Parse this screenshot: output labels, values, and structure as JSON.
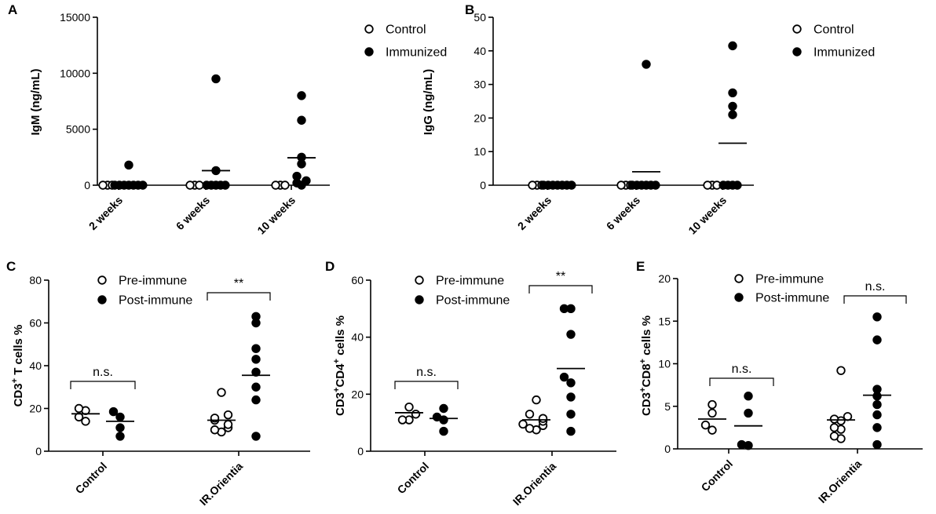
{
  "chart_data": [
    {
      "id": "A",
      "panel_label": "A",
      "type": "scatter",
      "ylabel": "IgM (ng/mL)",
      "ylim": [
        0,
        15000
      ],
      "yticks": [
        0,
        5000,
        10000,
        15000
      ],
      "tick_labels": [
        "0",
        "5000",
        "10000",
        "15000"
      ],
      "categories": [
        "2 weeks",
        "6 weeks",
        "10 weeks"
      ],
      "legend": [
        {
          "name": "Control",
          "filled": false
        },
        {
          "name": "Immunized",
          "filled": true
        }
      ],
      "series": [
        {
          "name": "Control",
          "filled": false,
          "groups": [
            [
              0,
              0,
              0
            ],
            [
              0,
              0,
              0
            ],
            [
              0,
              0,
              0
            ]
          ],
          "means": [
            null,
            null,
            null
          ]
        },
        {
          "name": "Immunized",
          "filled": true,
          "groups": [
            [
              1800,
              0,
              0,
              0,
              0,
              0,
              0,
              0
            ],
            [
              9500,
              1300,
              0,
              0,
              0,
              0,
              0
            ],
            [
              8000,
              5800,
              2500,
              1900,
              800,
              400,
              200,
              0
            ]
          ],
          "means": [
            0,
            1300,
            2450
          ]
        }
      ],
      "significance": []
    },
    {
      "id": "B",
      "panel_label": "B",
      "type": "scatter",
      "ylabel": "IgG (ng/mL)",
      "ylim": [
        0,
        50
      ],
      "yticks": [
        0,
        10,
        20,
        30,
        40,
        50
      ],
      "tick_labels": [
        "0",
        "10",
        "20",
        "30",
        "40",
        "50"
      ],
      "categories": [
        "2 weeks",
        "6 weeks",
        "10 weeks"
      ],
      "legend": [
        {
          "name": "Control",
          "filled": false
        },
        {
          "name": "Immunized",
          "filled": true
        }
      ],
      "series": [
        {
          "name": "Control",
          "filled": false,
          "groups": [
            [
              0,
              0,
              0
            ],
            [
              0,
              0,
              0
            ],
            [
              0,
              0,
              0
            ]
          ],
          "means": [
            null,
            null,
            null
          ]
        },
        {
          "name": "Immunized",
          "filled": true,
          "groups": [
            [
              0,
              0,
              0,
              0,
              0,
              0,
              0
            ],
            [
              36,
              0,
              0,
              0,
              0,
              0,
              0
            ],
            [
              41.5,
              27.5,
              23.5,
              21,
              0,
              0,
              0,
              0
            ]
          ],
          "means": [
            0,
            4,
            12.5
          ]
        }
      ],
      "significance": []
    },
    {
      "id": "C",
      "panel_label": "C",
      "type": "scatter",
      "ylabel_base": "CD3",
      "ylabel_sup": "+",
      "ylabel_rest": " T cells %",
      "ylim": [
        0,
        80
      ],
      "yticks": [
        0,
        20,
        40,
        60,
        80
      ],
      "tick_labels": [
        "0",
        "20",
        "40",
        "60",
        "80"
      ],
      "categories": [
        "Control",
        "IR.Orientia"
      ],
      "legend": [
        {
          "name": "Pre-immune",
          "filled": false
        },
        {
          "name": "Post-immune",
          "filled": true
        }
      ],
      "series": [
        {
          "name": "Pre-immune",
          "filled": false,
          "groups": [
            [
              20,
              16,
              19,
              14
            ],
            [
              27.5,
              17,
              15.5,
              14.5,
              12.5,
              11,
              10,
              9
            ]
          ],
          "means": [
            17.5,
            14.5
          ]
        },
        {
          "name": "Post-immune",
          "filled": true,
          "groups": [
            [
              18.5,
              16,
              11,
              7
            ],
            [
              63,
              60,
              48,
              43,
              37,
              30,
              24,
              7
            ]
          ],
          "means": [
            14,
            35.5
          ]
        }
      ],
      "significance": [
        {
          "category": "Control",
          "label": "n.s."
        },
        {
          "category": "IR.Orientia",
          "label": "**"
        }
      ]
    },
    {
      "id": "D",
      "panel_label": "D",
      "type": "scatter",
      "ylabel_base": "CD3",
      "ylabel_sup": "+",
      "ylabel_base2": "CD4",
      "ylabel_sup2": "+",
      "ylabel_rest": " cells %",
      "ylim": [
        0,
        60
      ],
      "yticks": [
        0,
        20,
        40,
        60
      ],
      "tick_labels": [
        "0",
        "20",
        "40",
        "60"
      ],
      "categories": [
        "Control",
        "IR.Orientia"
      ],
      "legend": [
        {
          "name": "Pre-immune",
          "filled": false
        },
        {
          "name": "Post-immune",
          "filled": true
        }
      ],
      "series": [
        {
          "name": "Pre-immune",
          "filled": false,
          "groups": [
            [
              15.5,
              11,
              13,
              11
            ],
            [
              18,
              13,
              11.5,
              10.5,
              9.5,
              9,
              8,
              7.5
            ]
          ],
          "means": [
            13.5,
            11
          ]
        },
        {
          "name": "Post-immune",
          "filled": true,
          "groups": [
            [
              15,
              12,
              11,
              7
            ],
            [
              50,
              50,
              41,
              26,
              24,
              19,
              13,
              7
            ]
          ],
          "means": [
            11.5,
            29
          ]
        }
      ],
      "significance": [
        {
          "category": "Control",
          "label": "n.s."
        },
        {
          "category": "IR.Orientia",
          "label": "**"
        }
      ]
    },
    {
      "id": "E",
      "panel_label": "E",
      "type": "scatter",
      "ylabel_base": "CD3",
      "ylabel_sup": "+",
      "ylabel_base2": "CD8",
      "ylabel_sup2": "+",
      "ylabel_rest": " cells %",
      "ylim": [
        0,
        20
      ],
      "yticks": [
        0,
        5,
        10,
        15,
        20
      ],
      "tick_labels": [
        "0",
        "5",
        "10",
        "15",
        "20"
      ],
      "categories": [
        "Control",
        "IR.Orientia"
      ],
      "legend": [
        {
          "name": "Pre-immune",
          "filled": false
        },
        {
          "name": "Post-immune",
          "filled": true
        }
      ],
      "series": [
        {
          "name": "Pre-immune",
          "filled": false,
          "groups": [
            [
              5.2,
              4.2,
              2.8,
              2.2
            ],
            [
              9.2,
              3.8,
              3.5,
              3.3,
              2.5,
              2.3,
              1.5,
              1.2
            ]
          ],
          "means": [
            3.5,
            3.4
          ]
        },
        {
          "name": "Post-immune",
          "filled": true,
          "groups": [
            [
              6.2,
              4.2,
              0.5,
              0.4
            ],
            [
              15.5,
              12.8,
              7,
              6.2,
              5.2,
              4,
              2.5,
              0.5
            ]
          ],
          "means": [
            2.7,
            6.3
          ]
        }
      ],
      "significance": [
        {
          "category": "Control",
          "label": "n.s."
        },
        {
          "category": "IR.Orientia",
          "label": "n.s."
        }
      ]
    }
  ]
}
